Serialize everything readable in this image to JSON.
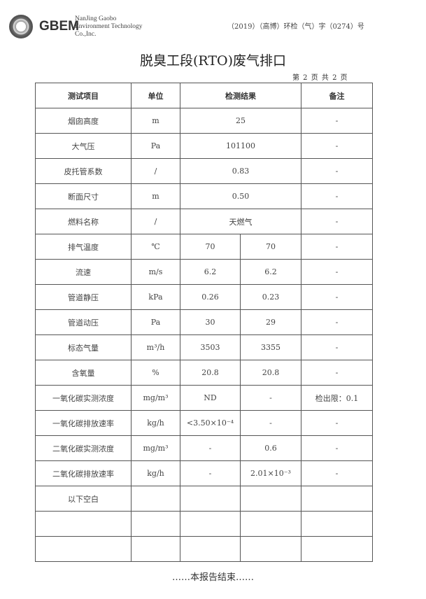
{
  "header": {
    "brand": "GBEM",
    "company_lines": [
      "NanJing Gaobo",
      "Environment Technology",
      "Co.,Inc."
    ],
    "report_no": "（2019）（高博）环检（气）字（0274）号"
  },
  "title": "脱臭工段(RTO)废气排口",
  "page_info": "第 2 页 共 2 页",
  "table": {
    "headers": [
      "测试项目",
      "单位",
      "检测结果",
      "备注"
    ],
    "rows": [
      {
        "item": "烟囱高度",
        "unit": "m",
        "result": "25",
        "remark": "-"
      },
      {
        "item": "大气压",
        "unit": "Pa",
        "result": "101100",
        "remark": "-"
      },
      {
        "item": "皮托管系数",
        "unit": "/",
        "result": "0.83",
        "remark": "-"
      },
      {
        "item": "断面尺寸",
        "unit": "m",
        "result": "0.50",
        "remark": "-"
      },
      {
        "item": "燃料名称",
        "unit": "/",
        "result": "天燃气",
        "remark": "-"
      },
      {
        "item": "排气温度",
        "unit": "℃",
        "r1": "70",
        "r2": "70",
        "remark": "-"
      },
      {
        "item": "流速",
        "unit": "m/s",
        "r1": "6.2",
        "r2": "6.2",
        "remark": "-"
      },
      {
        "item": "管道静压",
        "unit": "kPa",
        "r1": "0.26",
        "r2": "0.23",
        "remark": "-"
      },
      {
        "item": "管道动压",
        "unit": "Pa",
        "r1": "30",
        "r2": "29",
        "remark": "-"
      },
      {
        "item": "标态气量",
        "unit": "m³/h",
        "r1": "3503",
        "r2": "3355",
        "remark": "-"
      },
      {
        "item": "含氧量",
        "unit": "%",
        "r1": "20.8",
        "r2": "20.8",
        "remark": "-"
      },
      {
        "item": "一氧化碳实测浓度",
        "unit": "mg/m³",
        "r1": "ND",
        "r2": "-",
        "remark": "检出限：0.1"
      },
      {
        "item": "一氧化碳排放速率",
        "unit": "kg/h",
        "r1": "<3.50×10⁻⁴",
        "r2": "-",
        "remark": "-"
      },
      {
        "item": "二氧化碳实测浓度",
        "unit": "mg/m³",
        "r1": "-",
        "r2": "0.6",
        "remark": "-"
      },
      {
        "item": "二氧化碳排放速率",
        "unit": "kg/h",
        "r1": "-",
        "r2": "2.01×10⁻³",
        "remark": "-"
      },
      {
        "item": "以下空白",
        "unit": "",
        "r1": "",
        "r2": "",
        "remark": ""
      },
      {
        "item": "",
        "unit": "",
        "r1": "",
        "r2": "",
        "remark": ""
      },
      {
        "item": "",
        "unit": "",
        "r1": "",
        "r2": "",
        "remark": ""
      }
    ]
  },
  "footer": "……本报告结束……"
}
